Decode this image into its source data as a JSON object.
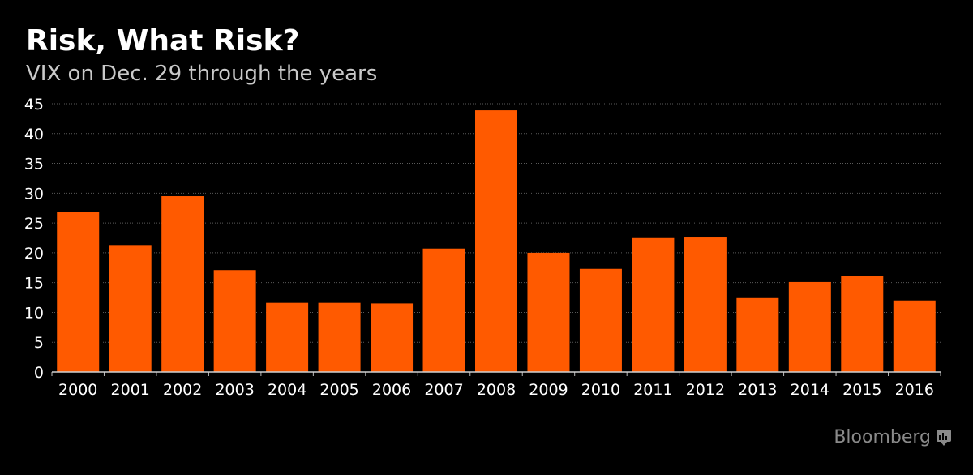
{
  "header": {
    "title": "Risk, What Risk?",
    "subtitle": "VIX on Dec. 29 through the years"
  },
  "brand": {
    "name": "Bloomberg"
  },
  "colors": {
    "bar": "#ff5a00",
    "background": "#000000",
    "grid": "#5a5a5a",
    "text": "#ffffff"
  },
  "chart_data": {
    "type": "bar",
    "title": "Risk, What Risk?",
    "subtitle": "VIX on Dec. 29 through the years",
    "categories": [
      "2000",
      "2001",
      "2002",
      "2003",
      "2004",
      "2005",
      "2006",
      "2007",
      "2008",
      "2009",
      "2010",
      "2011",
      "2012",
      "2013",
      "2014",
      "2015",
      "2016"
    ],
    "values": [
      26.8,
      21.3,
      29.5,
      17.1,
      11.6,
      11.6,
      11.5,
      20.7,
      43.9,
      20.0,
      17.3,
      22.6,
      22.7,
      12.4,
      15.1,
      16.1,
      12.0
    ],
    "yticks": [
      0,
      5,
      10,
      15,
      20,
      25,
      30,
      35,
      40,
      45
    ],
    "ylim": [
      0,
      45
    ],
    "grid": true,
    "legend": "none"
  }
}
